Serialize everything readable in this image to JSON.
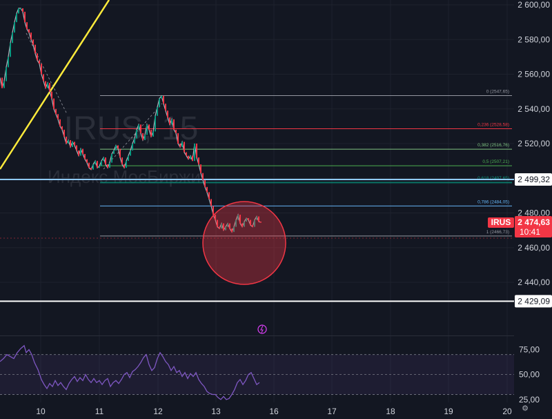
{
  "watermark": {
    "symbol": "IRUS, 15",
    "name": "Индекс МосБиржи"
  },
  "chart_data": [
    {
      "type": "line",
      "instrument": "IRUS",
      "timeframe": "15",
      "xlabel": "",
      "ylabel": "",
      "x_ticks": [
        "10",
        "11",
        "12",
        "13",
        "16",
        "17",
        "18",
        "19",
        "20"
      ],
      "y_ticks": [
        "2 440,00",
        "2 460,00",
        "2 480,00",
        "2 500,00",
        "2 520,00",
        "2 540,00",
        "2 560,00",
        "2 580,00",
        "2 600,00"
      ],
      "ylim": [
        2425,
        2603
      ],
      "price_series": [
        [
          0,
          2558
        ],
        [
          3,
          2552
        ],
        [
          6,
          2556
        ],
        [
          9,
          2564
        ],
        [
          12,
          2570
        ],
        [
          15,
          2578
        ],
        [
          18,
          2584
        ],
        [
          21,
          2590
        ],
        [
          24,
          2595
        ],
        [
          27,
          2598
        ],
        [
          30,
          2598
        ],
        [
          33,
          2596
        ],
        [
          36,
          2590
        ],
        [
          39,
          2586
        ],
        [
          42,
          2584
        ],
        [
          45,
          2580
        ],
        [
          48,
          2577
        ],
        [
          51,
          2572
        ],
        [
          54,
          2568
        ],
        [
          57,
          2566
        ],
        [
          60,
          2560
        ],
        [
          63,
          2556
        ],
        [
          66,
          2552
        ],
        [
          69,
          2555
        ],
        [
          72,
          2550
        ],
        [
          75,
          2546
        ],
        [
          78,
          2540
        ],
        [
          81,
          2537
        ],
        [
          84,
          2534
        ],
        [
          87,
          2530
        ],
        [
          90,
          2528
        ],
        [
          93,
          2524
        ],
        [
          96,
          2520
        ],
        [
          99,
          2522
        ],
        [
          102,
          2518
        ],
        [
          105,
          2521
        ],
        [
          108,
          2519
        ],
        [
          111,
          2516
        ],
        [
          114,
          2513
        ],
        [
          117,
          2517
        ],
        [
          120,
          2514
        ],
        [
          123,
          2511
        ],
        [
          126,
          2509
        ],
        [
          129,
          2506
        ],
        [
          132,
          2505
        ],
        [
          135,
          2508
        ],
        [
          138,
          2510
        ],
        [
          141,
          2506
        ],
        [
          144,
          2507
        ],
        [
          147,
          2510
        ],
        [
          150,
          2512
        ],
        [
          153,
          2508
        ],
        [
          156,
          2506
        ],
        [
          159,
          2509
        ],
        [
          162,
          2514
        ],
        [
          165,
          2516
        ],
        [
          168,
          2519
        ],
        [
          171,
          2517
        ],
        [
          174,
          2512
        ],
        [
          177,
          2508
        ],
        [
          180,
          2506
        ],
        [
          183,
          2510
        ],
        [
          186,
          2513
        ],
        [
          189,
          2516
        ],
        [
          192,
          2520
        ],
        [
          195,
          2523
        ],
        [
          198,
          2528
        ],
        [
          201,
          2531
        ],
        [
          204,
          2526
        ],
        [
          207,
          2522
        ],
        [
          210,
          2525
        ],
        [
          213,
          2531
        ],
        [
          216,
          2528
        ],
        [
          219,
          2524
        ],
        [
          222,
          2527
        ],
        [
          225,
          2536
        ],
        [
          228,
          2541
        ],
        [
          231,
          2546
        ],
        [
          234,
          2547.5
        ],
        [
          237,
          2543
        ],
        [
          240,
          2539
        ],
        [
          243,
          2535
        ],
        [
          246,
          2531
        ],
        [
          249,
          2534
        ],
        [
          252,
          2528
        ],
        [
          255,
          2526
        ],
        [
          258,
          2520
        ],
        [
          261,
          2518
        ],
        [
          264,
          2521
        ],
        [
          267,
          2515
        ],
        [
          270,
          2513
        ],
        [
          273,
          2511
        ],
        [
          276,
          2513
        ],
        [
          279,
          2510
        ],
        [
          282,
          2520
        ],
        [
          285,
          2512
        ],
        [
          288,
          2508
        ],
        [
          291,
          2503
        ],
        [
          294,
          2499
        ],
        [
          297,
          2495
        ],
        [
          300,
          2492
        ],
        [
          303,
          2488
        ],
        [
          306,
          2484
        ],
        [
          309,
          2479
        ],
        [
          312,
          2476
        ],
        [
          315,
          2472
        ],
        [
          318,
          2471
        ],
        [
          321,
          2474
        ],
        [
          324,
          2470
        ],
        [
          327,
          2472
        ],
        [
          330,
          2474
        ],
        [
          333,
          2471
        ],
        [
          336,
          2469
        ],
        [
          339,
          2472
        ],
        [
          342,
          2476
        ],
        [
          345,
          2479
        ],
        [
          348,
          2474
        ],
        [
          351,
          2472
        ],
        [
          354,
          2475
        ],
        [
          357,
          2477
        ],
        [
          360,
          2476
        ],
        [
          363,
          2473
        ],
        [
          366,
          2472
        ],
        [
          369,
          2476
        ],
        [
          372,
          2478
        ],
        [
          375,
          2475
        ],
        [
          378,
          2474.63
        ]
      ],
      "fibonacci": {
        "levels": [
          {
            "ratio": "0",
            "price": "2547,65",
            "value": 2547.65,
            "color": "#9598a1"
          },
          {
            "ratio": "0,236",
            "price": "2528,58",
            "value": 2528.58,
            "color": "#f23645"
          },
          {
            "ratio": "0,382",
            "price": "2516,76",
            "value": 2516.76,
            "color": "#81c784"
          },
          {
            "ratio": "0,5",
            "price": "2507,21",
            "value": 2507.21,
            "color": "#4caf50"
          },
          {
            "ratio": "0,618",
            "price": "2497,65",
            "value": 2497.65,
            "color": "#089981"
          },
          {
            "ratio": "0,786",
            "price": "2484,05",
            "value": 2484.05,
            "color": "#64b5f6"
          },
          {
            "ratio": "1",
            "price": "2466,73",
            "value": 2466.73,
            "color": "#9598a1"
          }
        ]
      },
      "horizontal_lines": [
        {
          "label": "2 499,32",
          "value": 2499.32,
          "color": "#90caf9"
        },
        {
          "label": "2 429,09",
          "value": 2429.09,
          "color": "#ffffff"
        }
      ],
      "current_price": {
        "symbol": "IRUS",
        "price": "2 474,63",
        "value": 2474.63,
        "countdown": "10:41",
        "color": "#f23645"
      },
      "trendline_color": "#ffeb3b",
      "highlight_circle_color": "#f23645"
    },
    {
      "type": "line",
      "indicator": "oscillator",
      "y_ticks": [
        "25,00",
        "50,00",
        "75,00"
      ],
      "ylim": [
        20,
        85
      ],
      "band": [
        30,
        70
      ],
      "line_color": "#7e57c2",
      "values": [
        [
          0,
          63
        ],
        [
          5,
          66
        ],
        [
          10,
          70
        ],
        [
          15,
          68
        ],
        [
          20,
          66
        ],
        [
          25,
          72
        ],
        [
          30,
          76
        ],
        [
          35,
          79
        ],
        [
          38,
          72
        ],
        [
          42,
          75
        ],
        [
          46,
          70
        ],
        [
          50,
          62
        ],
        [
          55,
          55
        ],
        [
          60,
          45
        ],
        [
          64,
          40
        ],
        [
          68,
          36
        ],
        [
          72,
          41
        ],
        [
          76,
          38
        ],
        [
          80,
          44
        ],
        [
          84,
          39
        ],
        [
          88,
          42
        ],
        [
          92,
          38
        ],
        [
          96,
          35
        ],
        [
          100,
          41
        ],
        [
          104,
          45
        ],
        [
          108,
          48
        ],
        [
          112,
          43
        ],
        [
          116,
          47
        ],
        [
          120,
          44
        ],
        [
          124,
          50
        ],
        [
          128,
          45
        ],
        [
          132,
          42
        ],
        [
          136,
          46
        ],
        [
          140,
          42
        ],
        [
          144,
          44
        ],
        [
          148,
          40
        ],
        [
          152,
          44
        ],
        [
          156,
          46
        ],
        [
          160,
          38
        ],
        [
          164,
          42
        ],
        [
          168,
          44
        ],
        [
          172,
          41
        ],
        [
          176,
          45
        ],
        [
          180,
          50
        ],
        [
          184,
          52
        ],
        [
          188,
          47
        ],
        [
          192,
          53
        ],
        [
          196,
          55
        ],
        [
          200,
          58
        ],
        [
          204,
          62
        ],
        [
          208,
          67
        ],
        [
          212,
          70
        ],
        [
          216,
          60
        ],
        [
          220,
          54
        ],
        [
          224,
          57
        ],
        [
          228,
          66
        ],
        [
          232,
          72
        ],
        [
          236,
          68
        ],
        [
          240,
          63
        ],
        [
          244,
          60
        ],
        [
          248,
          54
        ],
        [
          252,
          58
        ],
        [
          256,
          52
        ],
        [
          260,
          54
        ],
        [
          264,
          48
        ],
        [
          268,
          52
        ],
        [
          272,
          46
        ],
        [
          276,
          51
        ],
        [
          280,
          48
        ],
        [
          284,
          52
        ],
        [
          288,
          45
        ],
        [
          292,
          41
        ],
        [
          296,
          38
        ],
        [
          300,
          33
        ],
        [
          304,
          31
        ],
        [
          308,
          30
        ],
        [
          312,
          30
        ],
        [
          316,
          27
        ],
        [
          320,
          25
        ],
        [
          324,
          28
        ],
        [
          328,
          25
        ],
        [
          332,
          26
        ],
        [
          336,
          30
        ],
        [
          340,
          35
        ],
        [
          344,
          42
        ],
        [
          348,
          45
        ],
        [
          352,
          40
        ],
        [
          356,
          44
        ],
        [
          360,
          50
        ],
        [
          364,
          52
        ],
        [
          368,
          46
        ],
        [
          372,
          40
        ],
        [
          376,
          42
        ]
      ]
    }
  ]
}
